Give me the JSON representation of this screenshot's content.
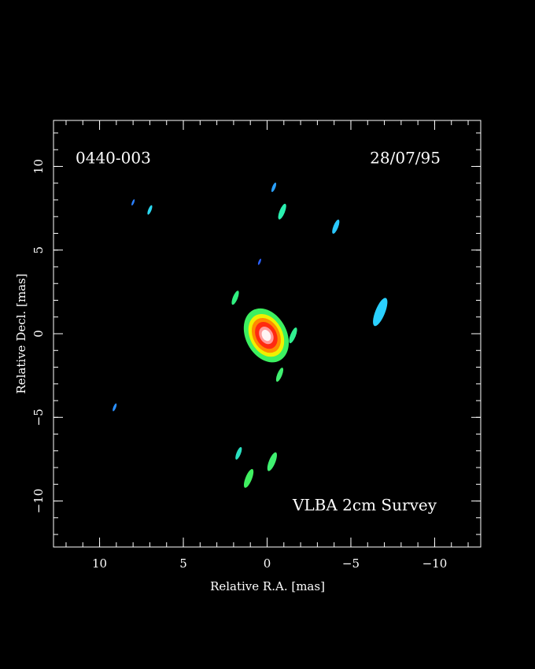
{
  "chart_data": {
    "type": "map",
    "source": "0440-003",
    "date": "28/07/95",
    "survey": "VLBA 2cm Survey",
    "xlabel": "Relative R.A. [mas]",
    "ylabel": "Relative Decl. [mas]",
    "xlim": [
      12.75,
      -12.75
    ],
    "ylim": [
      -12.75,
      12.75
    ],
    "xticks": [
      10,
      5,
      0,
      {
        "value": -5,
        "label": "−5"
      },
      {
        "value": -10,
        "label": "−10"
      }
    ],
    "yticks": [
      {
        "value": -10,
        "label": "−10"
      },
      {
        "value": -5,
        "label": "−5"
      },
      0,
      5,
      10
    ],
    "xminorticks": [
      12,
      11,
      10,
      9,
      8,
      7,
      6,
      5,
      4,
      3,
      2,
      1,
      0,
      -1,
      -2,
      -3,
      -4,
      -5,
      -6,
      -7,
      -8,
      -9,
      -10,
      -11,
      -12
    ],
    "yminorticks": [
      -12,
      -11,
      -10,
      -9,
      -8,
      -7,
      -6,
      -5,
      -4,
      -3,
      -2,
      -1,
      0,
      1,
      2,
      3,
      4,
      5,
      6,
      7,
      8,
      9,
      10,
      11,
      12
    ],
    "components": {
      "x": [
        0.05,
        0.05,
        0.05,
        0.05,
        0.05,
        0.05,
        -0.4,
        -0.9,
        -4.1,
        0.45,
        7.0,
        8.0,
        1.9,
        -6.75,
        9.1,
        1.7,
        1.1,
        -0.3,
        -0.75,
        -1.55
      ],
      "y": [
        -0.1,
        -0.1,
        -0.1,
        -0.1,
        -0.1,
        -0.1,
        8.75,
        7.3,
        6.4,
        4.3,
        7.4,
        7.85,
        2.15,
        1.3,
        -4.4,
        -7.15,
        -8.65,
        -7.65,
        -2.45,
        -0.1
      ],
      "size": [
        1.7,
        1.35,
        1.1,
        0.85,
        0.55,
        0.35,
        0.3,
        0.5,
        0.45,
        0.2,
        0.3,
        0.2,
        0.45,
        0.9,
        0.25,
        0.4,
        0.6,
        0.6,
        0.45,
        0.5
      ],
      "colors": [
        "#3cf060",
        "#f0f000",
        "#ff8a00",
        "#ff2a10",
        "#ff9a9a",
        "#fff4f4",
        "#2aa0ff",
        "#2af0b0",
        "#2ac8ff",
        "#2a60ff",
        "#2ad8f0",
        "#2a80ff",
        "#30f080",
        "#2ad0ff",
        "#2a90ff",
        "#2ae0c0",
        "#40f060",
        "#40f070",
        "#40f070",
        "#30f090"
      ]
    }
  }
}
